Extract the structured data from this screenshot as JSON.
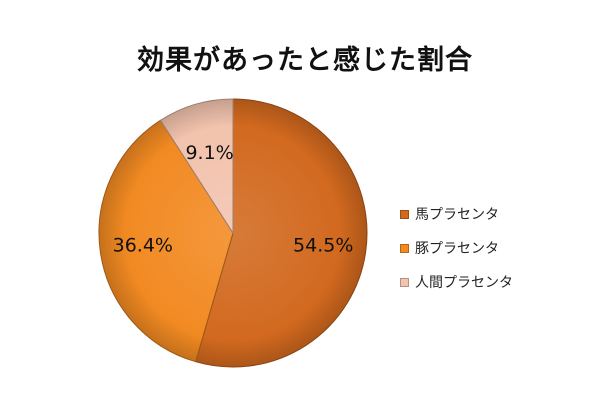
{
  "chart_data": {
    "type": "pie",
    "title": "効果があったと感じた割合",
    "categories": [
      "馬プラセンタ",
      "豚プラセンタ",
      "人間プラセンタ"
    ],
    "values": [
      54.5,
      36.4,
      9.1
    ],
    "data_labels": [
      "54.5%",
      "36.4%",
      "9.1%"
    ],
    "colors": [
      "#d2691f",
      "#f28a22",
      "#f2c3ad"
    ],
    "start_angle_deg": 0,
    "direction": "clockwise",
    "legend_position": "right",
    "grid": false
  }
}
